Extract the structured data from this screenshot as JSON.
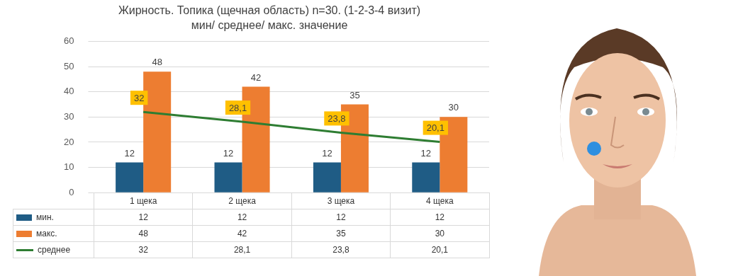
{
  "chart_data": {
    "type": "bar",
    "title": "Жирность. Топика (щечная область) n=30. (1-2-3-4 визит)",
    "subtitle": "мин/ среднее/ макс. значение",
    "categories": [
      "1 щека",
      "2 щека",
      "3 щека",
      "4 щека"
    ],
    "series": [
      {
        "name": "мин.",
        "color": "#1f5c85",
        "values": [
          12,
          12,
          12,
          12
        ]
      },
      {
        "name": "макс.",
        "color": "#ed7d31",
        "values": [
          48,
          42,
          35,
          30
        ]
      },
      {
        "name": "среднее",
        "type": "line",
        "color": "#2e7d32",
        "values": [
          32,
          28.1,
          23.8,
          20.1
        ],
        "value_labels": [
          "32",
          "28,1",
          "23,8",
          "20,1"
        ]
      }
    ],
    "ylim": [
      0,
      60
    ],
    "yticks": [
      0,
      10,
      20,
      30,
      40,
      50,
      60
    ],
    "grid": true,
    "data_labels": true
  }
}
